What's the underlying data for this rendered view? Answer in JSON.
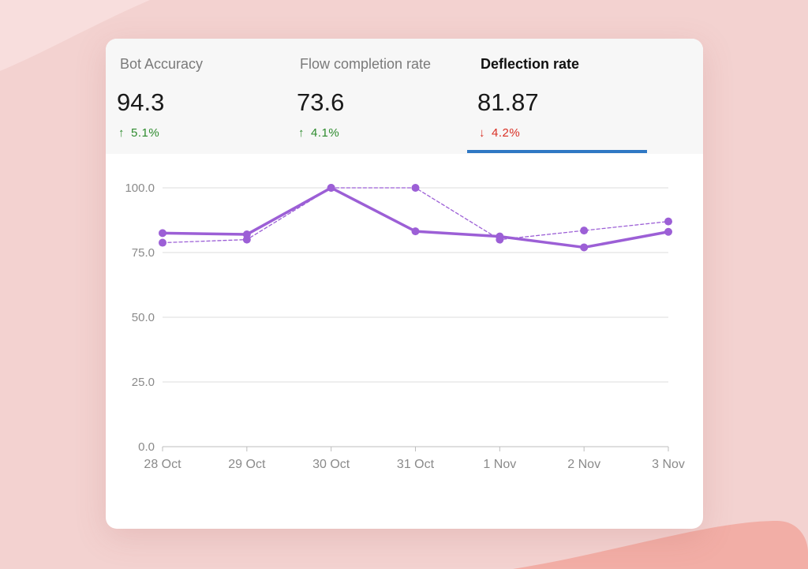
{
  "metrics": [
    {
      "label": "Bot Accuracy",
      "value": "94.3",
      "delta": "5.1%",
      "direction": "up",
      "active": false
    },
    {
      "label": "Flow completion rate",
      "value": "73.6",
      "delta": "4.1%",
      "direction": "up",
      "active": false
    },
    {
      "label": "Deflection rate",
      "value": "81.87",
      "delta": "4.2%",
      "direction": "down",
      "active": true
    }
  ],
  "icons": {
    "up": "arrow-up-icon",
    "down": "arrow-down-icon"
  },
  "colors": {
    "up": "#2e8b2e",
    "down": "#d93025",
    "active_tab": "#2f78c4",
    "series": "#9c5fd6",
    "background": "#f3d2d0"
  },
  "chart_data": {
    "type": "line",
    "categories": [
      "28 Oct",
      "29 Oct",
      "30 Oct",
      "31 Oct",
      "1 Nov",
      "2 Nov",
      "3 Nov"
    ],
    "ylim": [
      0,
      100
    ],
    "yticks": [
      "0.0",
      "25.0",
      "50.0",
      "75.0",
      "100.0"
    ],
    "ytick_values": [
      0,
      25,
      50,
      75,
      100
    ],
    "grid": true,
    "series": [
      {
        "style": "solid",
        "values": [
          82.5,
          82.0,
          100.0,
          83.2,
          81.2,
          77.0,
          83.0
        ]
      },
      {
        "style": "dashed",
        "values": [
          78.8,
          80.0,
          100.0,
          100.0,
          80.0,
          83.5,
          87.0
        ]
      }
    ]
  }
}
